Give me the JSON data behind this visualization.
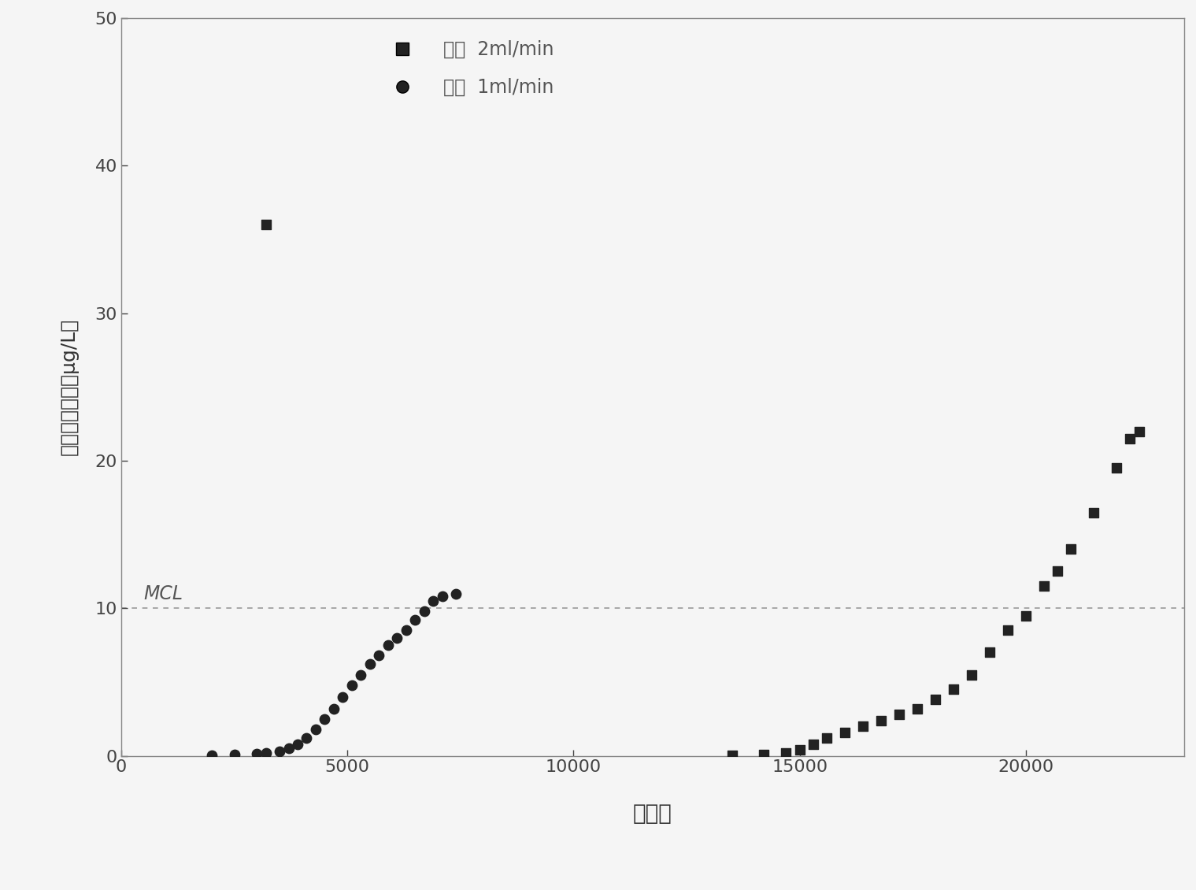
{
  "title": "",
  "xlabel": "柱体积",
  "ylabel": "含础废水流量（μg/L）",
  "xlim": [
    0,
    23500
  ],
  "ylim": [
    0,
    50
  ],
  "xticks": [
    0,
    5000,
    10000,
    15000,
    20000
  ],
  "yticks": [
    0,
    10,
    20,
    30,
    40,
    50
  ],
  "mcl_y": 10,
  "mcl_label": "MCL",
  "legend_label_2ml": "流速  2ml/min",
  "legend_label_1ml": "流速  1ml/min",
  "series_1ml_x": [
    2000,
    2500,
    3000,
    3200,
    3500,
    3700,
    3900,
    4100,
    4300,
    4500,
    4700,
    4900,
    5100,
    5300,
    5500,
    5700,
    5900,
    6100,
    6300,
    6500,
    6700,
    6900,
    7100,
    7400
  ],
  "series_1ml_y": [
    0.05,
    0.08,
    0.12,
    0.18,
    0.3,
    0.5,
    0.8,
    1.2,
    1.8,
    2.5,
    3.2,
    4.0,
    4.8,
    5.5,
    6.2,
    6.8,
    7.5,
    8.0,
    8.5,
    9.2,
    9.8,
    10.5,
    10.8,
    11.0
  ],
  "series_2ml_x": [
    13500,
    14200,
    14700,
    15000,
    15300,
    15600,
    16000,
    16400,
    16800,
    17200,
    17600,
    18000,
    18400,
    18800,
    19200,
    19600,
    20000,
    20400,
    20700,
    21000,
    21500,
    22000,
    22300,
    22500
  ],
  "series_2ml_y": [
    0.05,
    0.1,
    0.2,
    0.4,
    0.8,
    1.2,
    1.6,
    2.0,
    2.4,
    2.8,
    3.2,
    3.8,
    4.5,
    5.5,
    7.0,
    8.5,
    9.5,
    11.5,
    12.5,
    14.0,
    16.5,
    19.5,
    21.5,
    22.0
  ],
  "outlier_2ml_x": 3200,
  "outlier_2ml_y": 36.0,
  "marker_size_sq": 70,
  "marker_size_ci": 80,
  "line_color": "#444444",
  "dot_color": "#222222",
  "background_color": "#f5f5f5",
  "dpi": 100,
  "figsize": [
    15.19,
    11.3
  ],
  "spine_color": "#888888",
  "tick_color": "#444444",
  "tick_labelsize": 16,
  "xlabel_fontsize": 20,
  "ylabel_fontsize": 18,
  "legend_fontsize": 17,
  "mcl_fontsize": 17
}
